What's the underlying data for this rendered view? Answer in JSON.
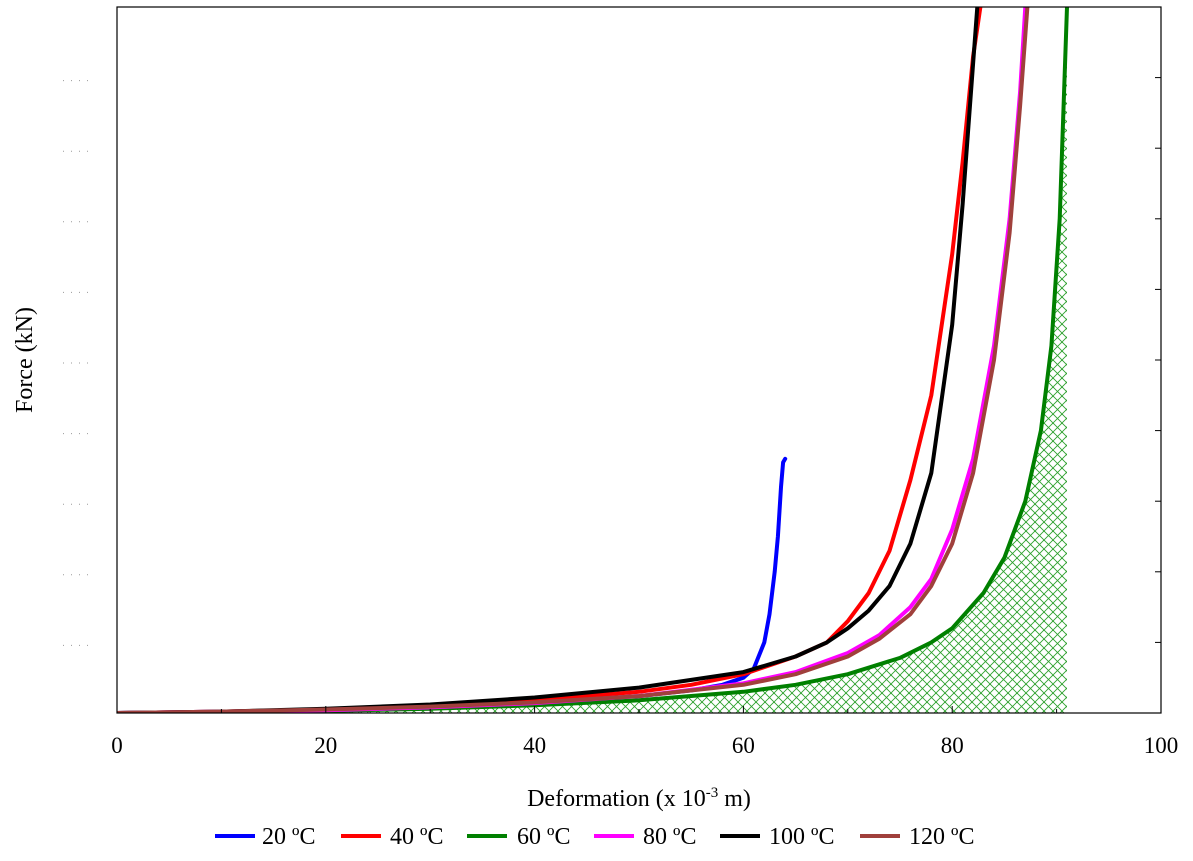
{
  "chart_data": {
    "type": "line",
    "title": "",
    "xlabel": "Deformation (x 10",
    "xlabel_sup": "-3",
    "xlabel_tail": " m)",
    "ylabel": "Force (kN)",
    "xlim": [
      0,
      100
    ],
    "ylim": [
      0,
      1
    ],
    "x_ticks": [
      0,
      20,
      40,
      60,
      80,
      100
    ],
    "x_tick_labels": [
      "0",
      "20",
      "40",
      "60",
      "80",
      "100"
    ],
    "y_tick_labels_visible": false,
    "grid": false,
    "legend_position": "bottom",
    "hatched_area_under_series": "60 ºC",
    "hatch_color": "#2ca02c",
    "series": [
      {
        "name": "20 ºC",
        "color": "#0000ff",
        "x": [
          0,
          10,
          20,
          30,
          40,
          50,
          55,
          58,
          60,
          61,
          62,
          62.5,
          63,
          63.3,
          63.6,
          63.8,
          64
        ],
        "y": [
          0,
          0.001,
          0.004,
          0.008,
          0.014,
          0.024,
          0.032,
          0.04,
          0.05,
          0.063,
          0.1,
          0.14,
          0.2,
          0.25,
          0.32,
          0.355,
          0.36
        ]
      },
      {
        "name": "40 ºC",
        "color": "#ff0000",
        "x": [
          0,
          10,
          20,
          30,
          40,
          50,
          55,
          60,
          65,
          68,
          70,
          72,
          74,
          76,
          78,
          80,
          81,
          82,
          82.7
        ],
        "y": [
          0,
          0.002,
          0.005,
          0.01,
          0.018,
          0.03,
          0.04,
          0.055,
          0.08,
          0.1,
          0.13,
          0.17,
          0.23,
          0.33,
          0.45,
          0.65,
          0.78,
          0.93,
          1.0
        ]
      },
      {
        "name": "60 ºC",
        "color": "#008000",
        "x": [
          0,
          10,
          20,
          30,
          40,
          50,
          60,
          65,
          70,
          75,
          78,
          80,
          83,
          85,
          87,
          88.5,
          89.5,
          90.3,
          91
        ],
        "y": [
          0,
          0.001,
          0.003,
          0.006,
          0.011,
          0.018,
          0.03,
          0.04,
          0.055,
          0.078,
          0.1,
          0.12,
          0.17,
          0.22,
          0.3,
          0.4,
          0.52,
          0.7,
          1.0
        ]
      },
      {
        "name": "80 ºC",
        "color": "#ff00ff",
        "x": [
          0,
          10,
          20,
          30,
          40,
          50,
          60,
          65,
          70,
          73,
          76,
          78,
          80,
          82,
          84,
          85.5,
          86.5,
          87
        ],
        "y": [
          0,
          0.002,
          0.004,
          0.008,
          0.014,
          0.024,
          0.042,
          0.058,
          0.085,
          0.11,
          0.15,
          0.19,
          0.26,
          0.36,
          0.52,
          0.7,
          0.88,
          1.0
        ]
      },
      {
        "name": "100 ºC",
        "color": "#000000",
        "x": [
          0,
          10,
          20,
          30,
          40,
          50,
          60,
          65,
          68,
          70,
          72,
          74,
          76,
          78,
          80,
          81,
          82,
          82.4
        ],
        "y": [
          0,
          0.002,
          0.006,
          0.012,
          0.022,
          0.036,
          0.058,
          0.08,
          0.1,
          0.12,
          0.145,
          0.18,
          0.24,
          0.34,
          0.55,
          0.72,
          0.92,
          1.0
        ]
      },
      {
        "name": "120 ºC",
        "color": "#a0403c",
        "x": [
          0,
          10,
          20,
          30,
          40,
          50,
          60,
          65,
          70,
          73,
          76,
          78,
          80,
          82,
          84,
          85.5,
          86.5,
          87.2
        ],
        "y": [
          0,
          0.002,
          0.005,
          0.009,
          0.015,
          0.024,
          0.04,
          0.055,
          0.08,
          0.105,
          0.14,
          0.18,
          0.24,
          0.34,
          0.5,
          0.68,
          0.86,
          1.0
        ]
      }
    ]
  }
}
